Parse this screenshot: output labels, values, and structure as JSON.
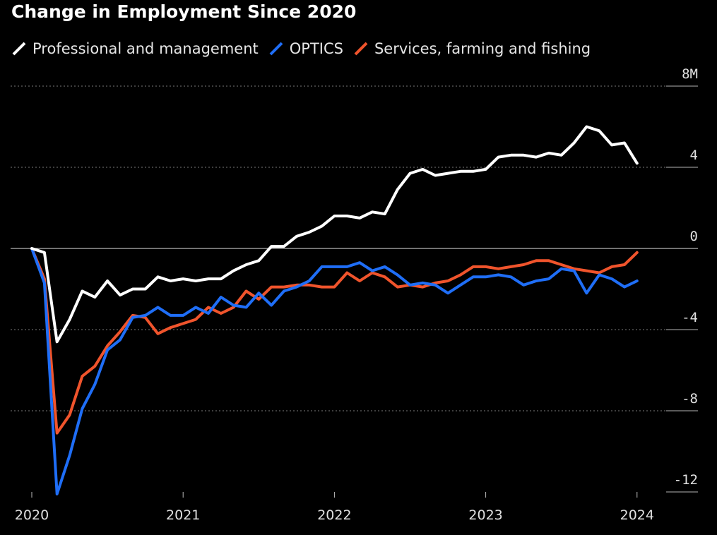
{
  "chart_data": {
    "type": "line",
    "title": "Change in Employment Since 2020",
    "xlabel": "",
    "ylabel": "",
    "y_unit_label": "8M",
    "ylim": [
      -13,
      8
    ],
    "y_ticks": [
      8,
      4,
      0,
      -4,
      -8,
      -12
    ],
    "y_tick_labels": [
      "8M",
      "4",
      "0",
      "-4",
      "-8",
      "-12"
    ],
    "x_ticks": [
      0,
      12,
      24,
      36,
      48
    ],
    "x_tick_labels": [
      "2020",
      "2021",
      "2022",
      "2023",
      "2024"
    ],
    "x_unit": "months since Jan 2020",
    "colors": {
      "professional": "#ffffff",
      "optics": "#1f6ef7",
      "services": "#f0542c",
      "grid": "#7a7a7a",
      "axis": "#bbbbbb"
    },
    "series": [
      {
        "name": "Professional and management",
        "color": "#ffffff",
        "values": [
          0,
          -0.2,
          -4.6,
          -3.5,
          -2.1,
          -2.4,
          -1.6,
          -2.3,
          -2.0,
          -2.0,
          -1.4,
          -1.6,
          -1.5,
          -1.6,
          -1.5,
          -1.5,
          -1.1,
          -0.8,
          -0.6,
          0.1,
          0.1,
          0.6,
          0.8,
          1.1,
          1.6,
          1.6,
          1.5,
          1.8,
          1.7,
          2.9,
          3.7,
          3.9,
          3.6,
          3.7,
          3.8,
          3.8,
          3.9,
          4.5,
          4.6,
          4.6,
          4.5,
          4.7,
          4.6,
          5.2,
          6.0,
          5.8,
          5.1,
          5.2,
          4.2
        ]
      },
      {
        "name": "OPTICS",
        "color": "#1f6ef7",
        "values": [
          0,
          -1.7,
          -12.1,
          -10.2,
          -7.9,
          -6.7,
          -5.0,
          -4.5,
          -3.4,
          -3.3,
          -2.9,
          -3.3,
          -3.3,
          -2.9,
          -3.2,
          -2.4,
          -2.8,
          -2.9,
          -2.2,
          -2.8,
          -2.1,
          -1.9,
          -1.6,
          -0.9,
          -0.9,
          -0.9,
          -0.7,
          -1.1,
          -0.9,
          -1.3,
          -1.8,
          -1.7,
          -1.8,
          -2.2,
          -1.8,
          -1.4,
          -1.4,
          -1.3,
          -1.4,
          -1.8,
          -1.6,
          -1.5,
          -1.0,
          -1.1,
          -2.2,
          -1.3,
          -1.5,
          -1.9,
          -1.6
        ]
      },
      {
        "name": "Services, farming and fishing",
        "color": "#f0542c",
        "values": [
          0,
          -1.5,
          -9.1,
          -8.2,
          -6.3,
          -5.8,
          -4.8,
          -4.1,
          -3.3,
          -3.4,
          -4.2,
          -3.9,
          -3.7,
          -3.5,
          -2.9,
          -3.2,
          -2.9,
          -2.1,
          -2.5,
          -1.9,
          -1.9,
          -1.8,
          -1.8,
          -1.9,
          -1.9,
          -1.2,
          -1.6,
          -1.2,
          -1.4,
          -1.9,
          -1.8,
          -1.9,
          -1.7,
          -1.6,
          -1.3,
          -0.9,
          -0.9,
          -1.0,
          -0.9,
          -0.8,
          -0.6,
          -0.6,
          -0.8,
          -1.0,
          -1.1,
          -1.2,
          -0.9,
          -0.8,
          -0.2
        ]
      }
    ]
  }
}
